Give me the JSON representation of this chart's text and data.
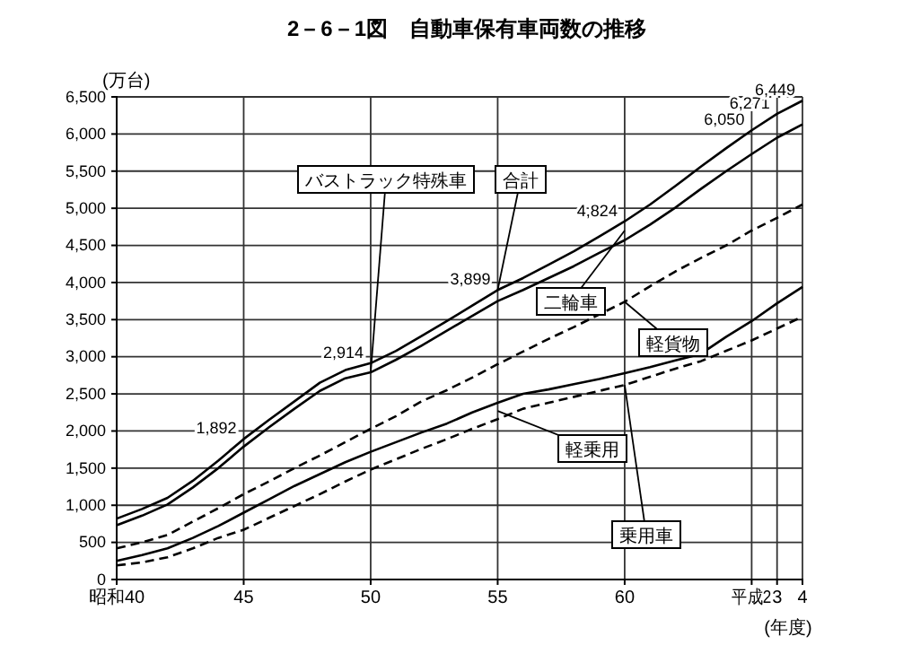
{
  "chart_data": {
    "type": "line",
    "title": "2－6－1図　自動車保有車両数の推移",
    "ylabel": "(万台)",
    "xlabel": "(年度)",
    "categories": [
      "昭和40",
      null,
      null,
      null,
      null,
      "45",
      null,
      null,
      null,
      null,
      "50",
      null,
      null,
      null,
      null,
      "55",
      null,
      null,
      null,
      null,
      "60",
      null,
      null,
      null,
      null,
      "平成2",
      "3",
      "4"
    ],
    "ylim": [
      0,
      6500
    ],
    "yticks": [
      0,
      500,
      {
        "value": 1000,
        "label": "1,000"
      },
      {
        "value": 1500,
        "label": "1,500"
      },
      {
        "value": 2000,
        "label": "2,000"
      },
      {
        "value": 2500,
        "label": "2,500"
      },
      {
        "value": 3000,
        "label": "3,000"
      },
      {
        "value": 3500,
        "label": "3,500"
      },
      {
        "value": 4000,
        "label": "4,000"
      },
      {
        "value": 4500,
        "label": "4,500"
      },
      {
        "value": 5000,
        "label": "5,000"
      },
      {
        "value": 5500,
        "label": "5,500"
      },
      {
        "value": 6000,
        "label": "6,000"
      },
      {
        "value": 6500,
        "label": "6,500"
      }
    ],
    "grid": true,
    "series": [
      {
        "color": "#000000",
        "line_style": "dashed",
        "values": [
          190,
          230,
          300,
          420,
          560,
          670,
          830,
          990,
          1150,
          1320,
          1480,
          1620,
          1760,
          1890,
          2030,
          2160,
          2300,
          2380,
          2460,
          2540,
          2620,
          2730,
          2840,
          2940,
          3080,
          3220,
          3380,
          3540
        ]
      },
      {
        "color": "#000000",
        "line_style": "solid",
        "values": [
          250,
          330,
          420,
          560,
          720,
          900,
          1080,
          1260,
          1420,
          1580,
          1720,
          1850,
          1980,
          2100,
          2250,
          2380,
          2500,
          2560,
          2630,
          2700,
          2780,
          2860,
          2950,
          3040,
          3270,
          3480,
          3720,
          3940
        ]
      },
      {
        "color": "#000000",
        "line_style": "dashed",
        "values": [
          420,
          500,
          600,
          780,
          960,
          1150,
          1320,
          1500,
          1670,
          1850,
          2030,
          2200,
          2400,
          2550,
          2720,
          2900,
          3070,
          3240,
          3400,
          3570,
          3740,
          3950,
          4150,
          4330,
          4500,
          4700,
          4870,
          5050
        ]
      },
      {
        "color": "#000000",
        "line_style": "solid",
        "values": [
          730,
          860,
          1010,
          1240,
          1500,
          1790,
          2050,
          2300,
          2540,
          2710,
          2790,
          2960,
          3150,
          3350,
          3550,
          3750,
          3900,
          4060,
          4220,
          4400,
          4570,
          4780,
          5010,
          5260,
          5500,
          5730,
          5950,
          6130
        ]
      },
      {
        "color": "#000000",
        "line_style": "solid",
        "values": [
          820,
          950,
          1100,
          1330,
          1600,
          1892,
          2150,
          2400,
          2650,
          2820,
          2914,
          3080,
          3280,
          3480,
          3690,
          3899,
          4060,
          4240,
          4420,
          4620,
          4824,
          5050,
          5300,
          5560,
          5810,
          6050,
          6271,
          6449
        ],
        "value_labels": [
          null,
          null,
          null,
          null,
          null,
          "1,892",
          null,
          null,
          null,
          null,
          "2,914",
          null,
          null,
          null,
          null,
          "3,899",
          null,
          null,
          null,
          null,
          "4,824",
          null,
          null,
          null,
          null,
          "6,050",
          "6,271",
          "6,449"
        ]
      }
    ],
    "annotations": [
      {
        "text": "合計",
        "x": "55",
        "y": 3899
      },
      {
        "text": "二輪車",
        "x": "60",
        "y": 4700
      },
      {
        "text": "バストラック特殊車",
        "x": "50",
        "y": 2790
      },
      {
        "text": "軽貨物",
        "x": "60",
        "y": 3740
      },
      {
        "text": "軽乗用",
        "x": "55",
        "y": 2270
      },
      {
        "text": "乗用車",
        "x": "60",
        "y": 2620
      }
    ]
  }
}
